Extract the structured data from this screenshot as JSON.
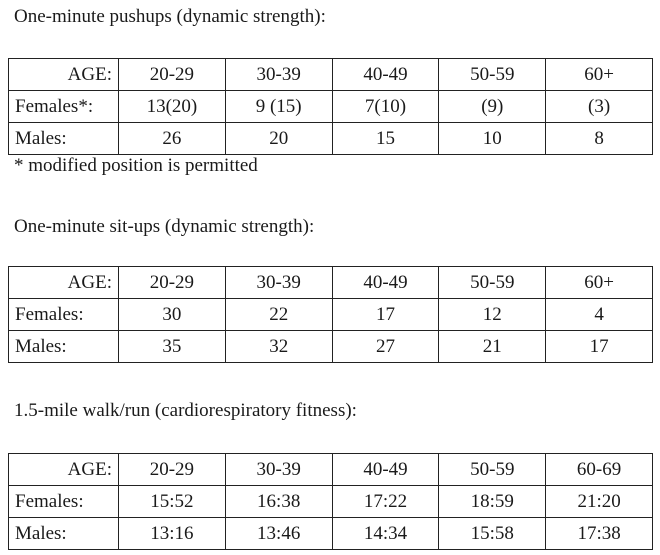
{
  "sections": [
    {
      "title": "One-minute pushups (dynamic strength):",
      "header": [
        "AGE:",
        "20-29",
        "30-39",
        "40-49",
        "50-59",
        "60+"
      ],
      "rows": [
        [
          "Females*:",
          "13(20)",
          "9 (15)",
          "7(10)",
          "(9)",
          "(3)"
        ],
        [
          "Males:",
          "26",
          "20",
          "15",
          "10",
          "8"
        ]
      ],
      "note": "* modified position is permitted"
    },
    {
      "title": "One-minute sit-ups (dynamic strength):",
      "header": [
        "AGE:",
        "20-29",
        "30-39",
        "40-49",
        "50-59",
        "60+"
      ],
      "rows": [
        [
          "Females:",
          "30",
          "22",
          "17",
          "12",
          "4"
        ],
        [
          "Males:",
          "35",
          "32",
          "27",
          "21",
          "17"
        ]
      ]
    },
    {
      "title": "1.5-mile walk/run (cardiorespiratory fitness):",
      "header": [
        "AGE:",
        "20-29",
        "30-39",
        "40-49",
        "50-59",
        "60-69"
      ],
      "rows": [
        [
          "Females:",
          "15:52",
          "16:38",
          "17:22",
          "18:59",
          "21:20"
        ],
        [
          "Males:",
          "13:16",
          "13:46",
          "14:34",
          "15:58",
          "17:38"
        ]
      ]
    }
  ]
}
